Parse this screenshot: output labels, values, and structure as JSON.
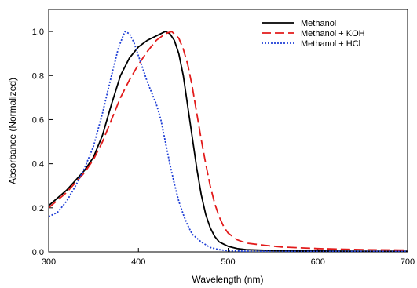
{
  "chart_data": {
    "type": "line",
    "title": "",
    "xlabel": "Wavelength (nm)",
    "ylabel": "Absorbance (Normalized)",
    "xlim": [
      300,
      700
    ],
    "ylim": [
      0.0,
      1.1
    ],
    "x_ticks": [
      300,
      400,
      500,
      600,
      700
    ],
    "y_ticks": [
      0.0,
      0.2,
      0.4,
      0.6,
      0.8,
      1.0
    ],
    "x_tick_labels": [
      "300",
      "400",
      "500",
      "600",
      "700"
    ],
    "y_tick_labels": [
      "0.0",
      "0.2",
      "0.4",
      "0.6",
      "0.8",
      "1.0"
    ],
    "grid": false,
    "legend_position": "top-right",
    "series": [
      {
        "name": "Methanol",
        "color": "#000000",
        "style": "solid",
        "points": [
          [
            300,
            0.21
          ],
          [
            320,
            0.28
          ],
          [
            340,
            0.37
          ],
          [
            350,
            0.43
          ],
          [
            360,
            0.53
          ],
          [
            370,
            0.67
          ],
          [
            380,
            0.8
          ],
          [
            390,
            0.88
          ],
          [
            400,
            0.93
          ],
          [
            410,
            0.96
          ],
          [
            420,
            0.98
          ],
          [
            430,
            1.0
          ],
          [
            435,
            0.99
          ],
          [
            440,
            0.96
          ],
          [
            445,
            0.9
          ],
          [
            450,
            0.8
          ],
          [
            455,
            0.66
          ],
          [
            460,
            0.52
          ],
          [
            465,
            0.38
          ],
          [
            470,
            0.26
          ],
          [
            475,
            0.17
          ],
          [
            480,
            0.11
          ],
          [
            485,
            0.07
          ],
          [
            490,
            0.045
          ],
          [
            500,
            0.025
          ],
          [
            510,
            0.015
          ],
          [
            520,
            0.01
          ],
          [
            550,
            0.006
          ],
          [
            600,
            0.004
          ],
          [
            650,
            0.003
          ],
          [
            700,
            0.003
          ]
        ]
      },
      {
        "name": "Methanol + KOH",
        "color": "#e21b1b",
        "style": "dashed",
        "points": [
          [
            300,
            0.2
          ],
          [
            320,
            0.27
          ],
          [
            340,
            0.36
          ],
          [
            350,
            0.42
          ],
          [
            360,
            0.5
          ],
          [
            370,
            0.6
          ],
          [
            380,
            0.7
          ],
          [
            390,
            0.78
          ],
          [
            400,
            0.85
          ],
          [
            410,
            0.91
          ],
          [
            420,
            0.96
          ],
          [
            430,
            0.99
          ],
          [
            437,
            1.0
          ],
          [
            445,
            0.97
          ],
          [
            450,
            0.92
          ],
          [
            455,
            0.85
          ],
          [
            460,
            0.75
          ],
          [
            465,
            0.63
          ],
          [
            470,
            0.51
          ],
          [
            475,
            0.4
          ],
          [
            480,
            0.3
          ],
          [
            485,
            0.22
          ],
          [
            490,
            0.16
          ],
          [
            495,
            0.115
          ],
          [
            500,
            0.085
          ],
          [
            510,
            0.055
          ],
          [
            520,
            0.04
          ],
          [
            540,
            0.03
          ],
          [
            560,
            0.022
          ],
          [
            600,
            0.015
          ],
          [
            650,
            0.01
          ],
          [
            700,
            0.008
          ]
        ]
      },
      {
        "name": "Methanol + HCl",
        "color": "#1f3fd6",
        "style": "dotted",
        "points": [
          [
            300,
            0.16
          ],
          [
            310,
            0.18
          ],
          [
            320,
            0.23
          ],
          [
            330,
            0.3
          ],
          [
            340,
            0.38
          ],
          [
            350,
            0.48
          ],
          [
            360,
            0.63
          ],
          [
            370,
            0.8
          ],
          [
            378,
            0.93
          ],
          [
            385,
            1.0
          ],
          [
            390,
            0.99
          ],
          [
            395,
            0.95
          ],
          [
            400,
            0.89
          ],
          [
            405,
            0.83
          ],
          [
            410,
            0.77
          ],
          [
            415,
            0.72
          ],
          [
            420,
            0.67
          ],
          [
            425,
            0.6
          ],
          [
            430,
            0.5
          ],
          [
            435,
            0.4
          ],
          [
            440,
            0.31
          ],
          [
            445,
            0.23
          ],
          [
            450,
            0.17
          ],
          [
            455,
            0.12
          ],
          [
            460,
            0.08
          ],
          [
            470,
            0.045
          ],
          [
            480,
            0.02
          ],
          [
            490,
            0.01
          ],
          [
            500,
            0.005
          ],
          [
            520,
            0.003
          ],
          [
            560,
            0.002
          ],
          [
            620,
            0.002
          ],
          [
            700,
            0.002
          ]
        ]
      }
    ]
  }
}
